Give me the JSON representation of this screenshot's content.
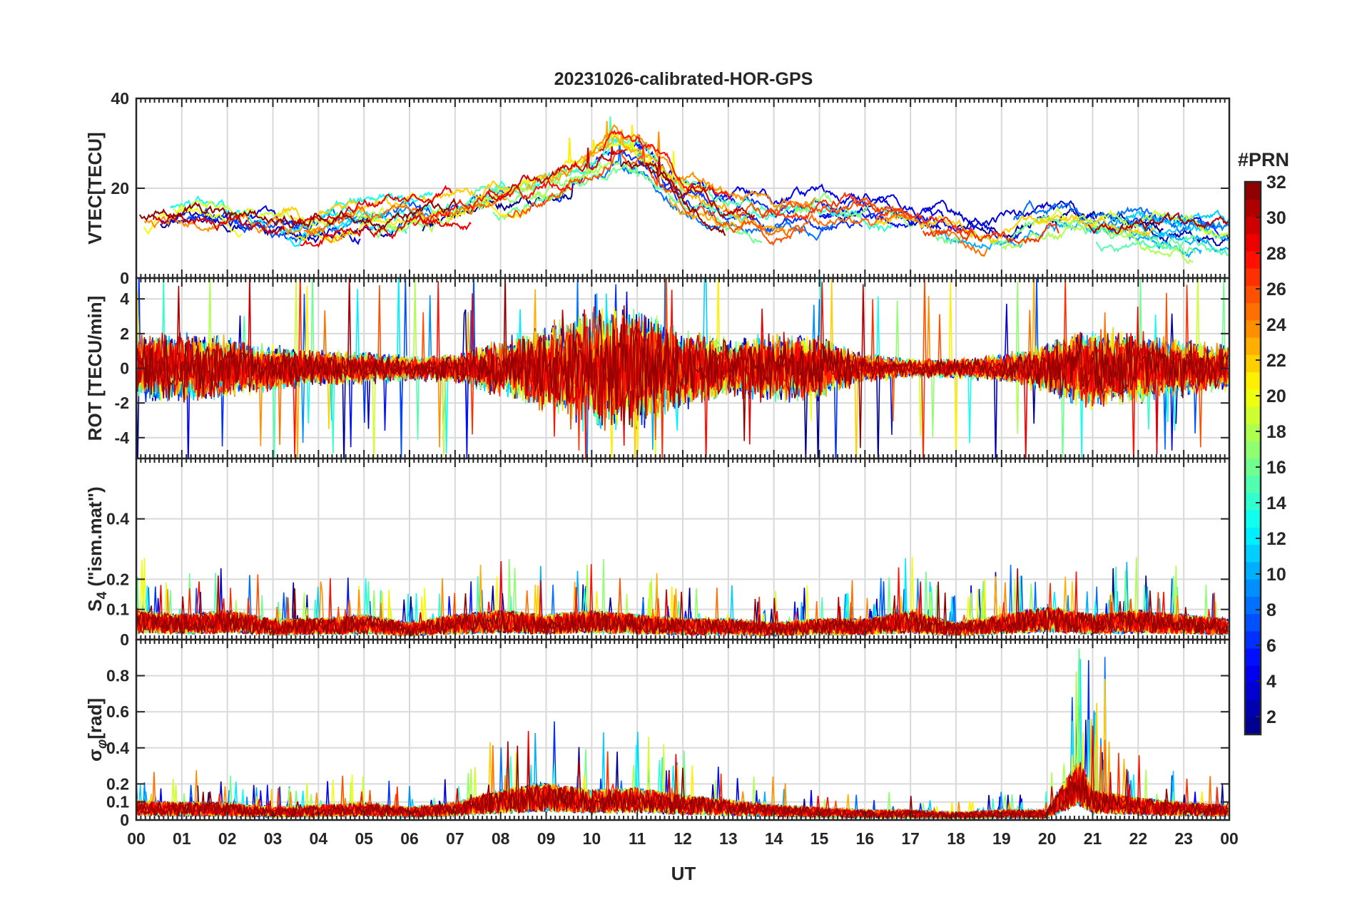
{
  "chart_data": [
    {
      "type": "line",
      "panel": "vtec",
      "title": "20231026-calibrated-HOR-GPS",
      "ylabel": "VTEC[TECU]",
      "ylim": [
        0,
        40
      ],
      "yticks": [
        "0",
        "20",
        "40"
      ],
      "ytick_values": [
        0,
        20,
        40
      ],
      "grid": true,
      "series_description": "32 PRN series, colored by PRN",
      "envelope": {
        "x": [
          0,
          1,
          2,
          3,
          4,
          5,
          6,
          7,
          8,
          9,
          10,
          10.5,
          11,
          11.5,
          12,
          13,
          14,
          15,
          16,
          17,
          18,
          19,
          20,
          21,
          22,
          23,
          24
        ],
        "y": [
          14,
          15,
          13,
          11,
          11,
          12,
          13,
          15,
          18,
          19,
          24,
          28,
          26,
          22,
          17,
          14,
          13,
          14,
          14,
          13,
          10,
          9,
          12,
          11,
          10,
          8,
          7
        ]
      }
    },
    {
      "type": "line",
      "panel": "rot",
      "ylabel": "ROT [TECU/min]",
      "ylim": [
        -5.2,
        5.2
      ],
      "yticks": [
        "-4",
        "-2",
        "0",
        "2",
        "4"
      ],
      "ytick_values": [
        -4,
        -2,
        0,
        2,
        4
      ],
      "grid": true,
      "activity": {
        "x": [
          0,
          1,
          2,
          3,
          4,
          5,
          6,
          7,
          8,
          9,
          10,
          11,
          12,
          13,
          14,
          15,
          16,
          17,
          18,
          19,
          20,
          21,
          22,
          23,
          24
        ],
        "amplitude": [
          2.0,
          2.2,
          2.0,
          1.4,
          1.1,
          1.0,
          0.8,
          0.9,
          1.8,
          2.8,
          3.6,
          3.8,
          2.5,
          1.8,
          2.2,
          2.0,
          0.9,
          0.6,
          0.6,
          0.9,
          1.6,
          2.6,
          2.2,
          1.8,
          1.4
        ]
      }
    },
    {
      "type": "line",
      "panel": "s4",
      "ylabel": "S4 (\"ism.mat\")",
      "ylabel_main": "S",
      "ylabel_sub": "4",
      "ylabel_rest": " (\"ism.mat\")",
      "ylim": [
        0,
        0.6
      ],
      "yticks": [
        "0",
        "0.1",
        "0.2",
        "0.4"
      ],
      "ytick_values": [
        0,
        0.1,
        0.2,
        0.4
      ],
      "grid": true,
      "level": {
        "x": [
          0,
          1,
          2,
          3,
          4,
          5,
          6,
          7,
          8,
          9,
          10,
          11,
          12,
          13,
          14,
          15,
          16,
          17,
          18,
          19,
          20,
          21,
          22,
          23,
          24
        ],
        "y": [
          0.07,
          0.06,
          0.07,
          0.05,
          0.05,
          0.06,
          0.04,
          0.06,
          0.07,
          0.06,
          0.07,
          0.06,
          0.05,
          0.05,
          0.04,
          0.05,
          0.05,
          0.07,
          0.04,
          0.06,
          0.08,
          0.06,
          0.07,
          0.06,
          0.05
        ]
      }
    },
    {
      "type": "line",
      "panel": "sigma_phi",
      "ylabel": "σφ[rad]",
      "ylabel_main": "σ",
      "ylabel_sub": "φ",
      "ylabel_rest": "[rad]",
      "ylim": [
        0,
        1.0
      ],
      "yticks": [
        "0",
        "0.1",
        "0.2",
        "0.4",
        "0.6",
        "0.8"
      ],
      "ytick_values": [
        0,
        0.1,
        0.2,
        0.4,
        0.6,
        0.8
      ],
      "grid": true,
      "level": {
        "x": [
          0,
          1,
          2,
          3,
          4,
          5,
          6,
          7,
          8,
          9,
          10,
          11,
          12,
          13,
          14,
          15,
          16,
          17,
          18,
          19,
          20,
          20.7,
          21,
          22,
          23,
          24
        ],
        "y": [
          0.08,
          0.07,
          0.07,
          0.05,
          0.06,
          0.07,
          0.05,
          0.07,
          0.12,
          0.15,
          0.12,
          0.13,
          0.1,
          0.08,
          0.06,
          0.05,
          0.04,
          0.04,
          0.03,
          0.04,
          0.04,
          0.25,
          0.12,
          0.09,
          0.07,
          0.06
        ]
      }
    }
  ],
  "xaxis": {
    "label": "UT",
    "xlim": [
      0,
      24
    ],
    "ticks": [
      "00",
      "01",
      "02",
      "03",
      "04",
      "05",
      "06",
      "07",
      "08",
      "09",
      "10",
      "11",
      "12",
      "13",
      "14",
      "15",
      "16",
      "17",
      "18",
      "19",
      "20",
      "21",
      "22",
      "23",
      "00"
    ]
  },
  "colorbar": {
    "title": "#PRN",
    "range": [
      1,
      32
    ],
    "ticks": [
      "2",
      "4",
      "6",
      "8",
      "10",
      "12",
      "14",
      "16",
      "18",
      "20",
      "22",
      "24",
      "26",
      "28",
      "30",
      "32"
    ],
    "tick_values": [
      2,
      4,
      6,
      8,
      10,
      12,
      14,
      16,
      18,
      20,
      22,
      24,
      26,
      28,
      30,
      32
    ],
    "colormap": "jet"
  },
  "colors": {
    "grid": "#d9d9d9",
    "axis": "#262626"
  }
}
